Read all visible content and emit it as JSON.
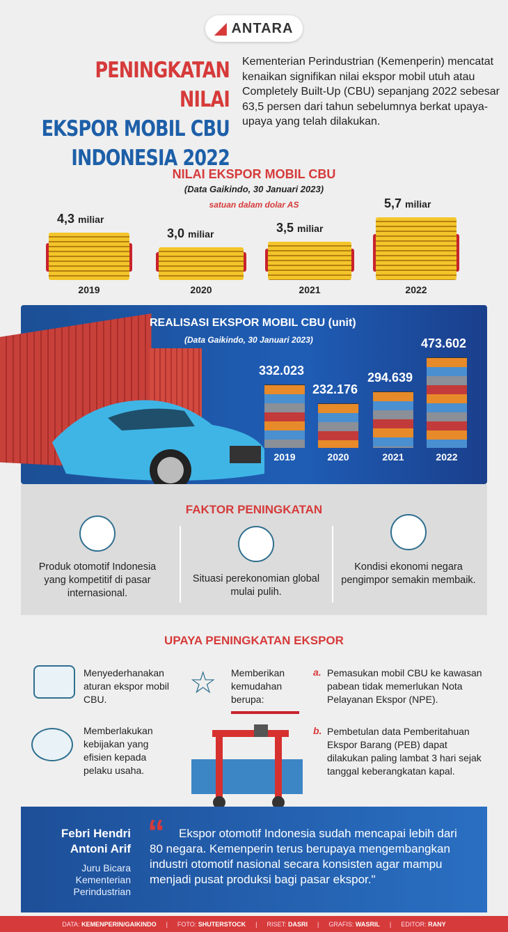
{
  "logo": {
    "text": "ANTARA"
  },
  "title": {
    "line1": "PENINGKATAN NILAI",
    "line2": "EKSPOR MOBIL CBU",
    "line3": "INDONESIA 2022"
  },
  "intro": "Kementerian Perindustrian (Kemenperin) mencatat kenaikan signifikan nilai ekspor mobil utuh atau Completely Built-Up (CBU) sepanjang 2022 sebesar 63,5 persen dari tahun sebelumnya berkat upaya-upaya yang telah dilakukan.",
  "value_section": {
    "heading": "NILAI EKSPOR MOBIL CBU",
    "source": "(Data Gaikindo, 30 Januari 2023)",
    "unit": "satuan dalam dolar AS",
    "items": [
      {
        "year": "2019",
        "value": "4,3",
        "suffix": "miliar",
        "num": 4.3
      },
      {
        "year": "2020",
        "value": "3,0",
        "suffix": "miliar",
        "num": 3.0
      },
      {
        "year": "2021",
        "value": "3,5",
        "suffix": "miliar",
        "num": 3.5
      },
      {
        "year": "2022",
        "value": "5,7",
        "suffix": "miliar",
        "num": 5.7
      }
    ]
  },
  "unit_section": {
    "heading": "REALISASI EKSPOR MOBIL CBU (unit)",
    "source": "(Data Gaikindo, 30 Januari 2023)",
    "items": [
      {
        "year": "2019",
        "value": "332.023",
        "num": 332023
      },
      {
        "year": "2020",
        "value": "232.176",
        "num": 232176
      },
      {
        "year": "2021",
        "value": "294.639",
        "num": 294639
      },
      {
        "year": "2022",
        "value": "473.602",
        "num": 473602
      }
    ]
  },
  "factors": {
    "heading": "FAKTOR PENINGKATAN",
    "items": [
      {
        "icon": "globe-icon",
        "text": "Produk otomotif Indonesia yang kompetitif di pasar internasional."
      },
      {
        "icon": "rising-bars-icon",
        "text": "Situasi perekonomian global mulai pulih."
      },
      {
        "icon": "cargo-ship-icon",
        "text": "Kondisi ekonomi negara pengimpor semakin membaik."
      }
    ]
  },
  "efforts": {
    "heading": "UPAYA PENINGKATAN EKSPOR",
    "simplify": "Menyederhanakan aturan ekspor mobil CBU.",
    "policy": "Memberlakukan kebijakan yang efisien kepada pelaku usaha.",
    "ease": "Memberikan kemudahan berupa:",
    "a_label": "a.",
    "a": "Pemasukan mobil CBU ke kawasan pabean tidak memerlukan Nota Pelayanan Ekspor (NPE).",
    "b_label": "b.",
    "b": "Pembetulan data Pemberitahuan Ekspor Barang (PEB) dapat dilakukan paling lambat 3 hari sejak tanggal keberangkatan kapal."
  },
  "quote": {
    "name": "Febri Hendri Antoni Arif",
    "role": "Juru Bicara Kementerian Perindustrian",
    "mark": "“",
    "text": "Ekspor otomotif Indonesia sudah mencapai lebih dari 80 negara. Kemenperin terus berupaya mengembangkan industri otomotif nasional secara konsisten agar mampu menjadi pusat produksi bagi pasar ekspor.\""
  },
  "footer": [
    {
      "label": "DATA:",
      "value": "KEMENPERIN/GAIKINDO"
    },
    {
      "label": "FOTO:",
      "value": "SHUTERSTOCK"
    },
    {
      "label": "RISET:",
      "value": "DASRI"
    },
    {
      "label": "GRAFIS:",
      "value": "WASRIL"
    },
    {
      "label": "EDITOR:",
      "value": "RANY"
    }
  ],
  "colors": {
    "red": "#d63a3a",
    "blue": "#1d5fa8",
    "coin": "#f3c52a"
  }
}
